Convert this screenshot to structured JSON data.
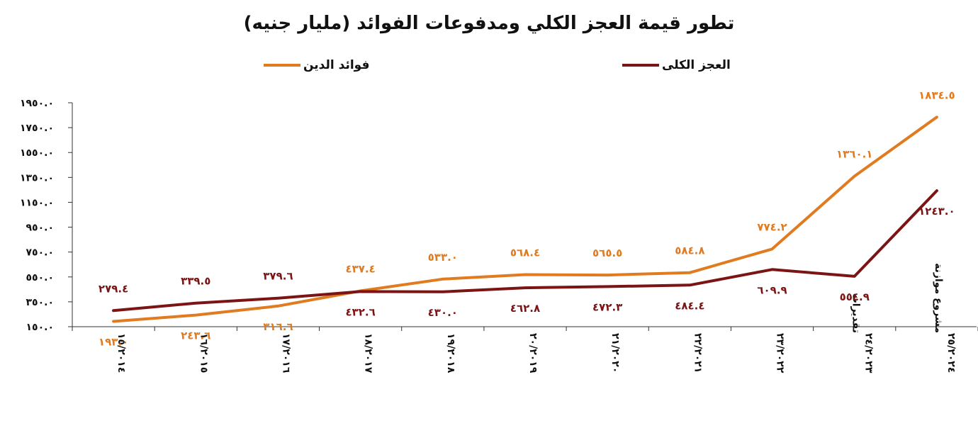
{
  "chart_data": {
    "type": "line",
    "title": "تطور قيمة العجز الكلي ومدفوعات الفوائد (مليار جنيه)",
    "categories": [
      "١٥/٢٠١٤",
      "١٦/٢٠١٥",
      "١٧/٢٠١٦",
      "١٨/٢٠١٧",
      "١٩/٢٠١٨",
      "٢٠/٢٠١٩",
      "٢١/٢٠٢٠",
      "٢٢/٢٠٢١",
      "٢٣/٢٠٢٢",
      "٢٤/٢٠٢٣ تقديرات",
      "٢٥/٢٠٢٤ مشروع موازنة"
    ],
    "y_tick_labels": [
      "١٥٠.٠",
      "٣٥٠.٠",
      "٥٥٠.٠",
      "٧٥٠.٠",
      "٩٥٠.٠",
      "١١٥٠.٠",
      "١٣٥٠.٠",
      "١٥٥٠.٠",
      "١٧٥٠.٠",
      "١٩٥٠.٠"
    ],
    "y_ticks": [
      150,
      350,
      550,
      750,
      950,
      1150,
      1350,
      1550,
      1750,
      1950
    ],
    "ylim": [
      150,
      1950
    ],
    "grid": false,
    "legend_position": "top",
    "series": [
      {
        "name": "فوائد الدين",
        "color": "#E07B20",
        "values": [
          193.0,
          243.6,
          316.6,
          437.4,
          533.0,
          568.4,
          565.5,
          584.8,
          774.2,
          1360.1,
          1834.5
        ],
        "labels": [
          "١٩٣.٠",
          "٢٤٣.٦",
          "٣١٦.٦",
          "٤٣٧.٤",
          "٥٣٣.٠",
          "٥٦٨.٤",
          "٥٦٥.٥",
          "٥٨٤.٨",
          "٧٧٤.٢",
          "١٣٦٠.١",
          "١٨٣٤.٥"
        ]
      },
      {
        "name": "العجز الكلى",
        "color": "#7B1414",
        "values": [
          279.4,
          339.5,
          379.6,
          432.6,
          430.0,
          462.8,
          472.3,
          484.4,
          609.9,
          554.9,
          1243.0
        ],
        "labels": [
          "٢٧٩.٤",
          "٣٣٩.٥",
          "٣٧٩.٦",
          "٤٣٢.٦",
          "٤٣٠.٠",
          "٤٦٢.٨",
          "٤٧٢.٣",
          "٤٨٤.٤",
          "٦٠٩.٩",
          "٥٥٤.٩",
          "١٢٤٣.٠"
        ]
      }
    ]
  }
}
